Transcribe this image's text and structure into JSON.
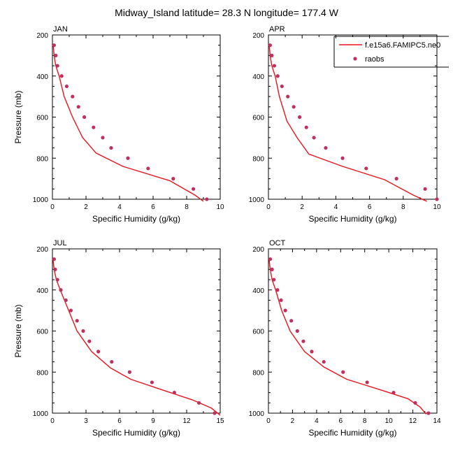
{
  "figure": {
    "title": "Midway_Island  latitude= 28.3 N longitude= 177.4 W"
  },
  "legend": {
    "model_label": "f.e15a6.FAMIPC5.ne0",
    "obs_label": "raobs",
    "model_color": "#e8141e",
    "obs_color": "#c0305f"
  },
  "chart_data": [
    {
      "type": "line",
      "panel": "JAN",
      "xlabel": "Specific Humidity (g/kg)",
      "ylabel": "Pressure (mb)",
      "xlim": [
        0,
        10
      ],
      "ylim": [
        1000,
        200
      ],
      "xticks": [
        0,
        2,
        4,
        6,
        8,
        10
      ],
      "yticks": [
        200,
        400,
        600,
        800,
        1000
      ],
      "series": [
        {
          "name": "f.e15a6.FAMIPC5.ne0",
          "style": "line",
          "x": [
            0.05,
            0.1,
            0.2,
            0.4,
            0.7,
            1.2,
            1.8,
            2.6,
            4.2,
            7.0,
            8.5,
            9.0
          ],
          "y": [
            250,
            300,
            350,
            400,
            500,
            600,
            700,
            775,
            840,
            910,
            980,
            1010
          ]
        },
        {
          "name": "raobs",
          "style": "markers",
          "x": [
            0.1,
            0.2,
            0.3,
            0.55,
            0.85,
            1.2,
            1.55,
            1.9,
            2.45,
            3.0,
            3.5,
            4.5,
            5.7,
            7.2,
            8.4,
            9.2
          ],
          "y": [
            250,
            300,
            350,
            400,
            450,
            500,
            550,
            600,
            650,
            700,
            750,
            800,
            850,
            900,
            950,
            1000
          ]
        }
      ]
    },
    {
      "type": "line",
      "panel": "APR",
      "xlabel": "Specific Humidity (g/kg)",
      "ylabel": "",
      "xlim": [
        0,
        10
      ],
      "ylim": [
        1000,
        200
      ],
      "xticks": [
        0,
        2,
        4,
        6,
        8,
        10
      ],
      "yticks": [
        200,
        400,
        600,
        800,
        1000
      ],
      "series": [
        {
          "name": "f.e15a6.FAMIPC5.ne0",
          "style": "line",
          "x": [
            0.05,
            0.1,
            0.2,
            0.4,
            0.65,
            1.1,
            1.7,
            2.4,
            4.4,
            6.9,
            8.6,
            9.4
          ],
          "y": [
            250,
            300,
            350,
            400,
            500,
            620,
            700,
            780,
            840,
            905,
            980,
            1010
          ]
        },
        {
          "name": "raobs",
          "style": "markers",
          "x": [
            0.1,
            0.2,
            0.35,
            0.55,
            0.8,
            1.15,
            1.5,
            1.85,
            2.25,
            2.7,
            3.4,
            4.4,
            5.8,
            7.6,
            9.3,
            10.0
          ],
          "y": [
            250,
            300,
            350,
            400,
            450,
            500,
            550,
            600,
            650,
            700,
            750,
            800,
            850,
            900,
            950,
            1000
          ]
        }
      ]
    },
    {
      "type": "line",
      "panel": "JUL",
      "xlabel": "Specific Humidity (g/kg)",
      "ylabel": "Pressure (mb)",
      "xlim": [
        0,
        15
      ],
      "ylim": [
        1000,
        200
      ],
      "xticks": [
        0,
        3,
        6,
        9,
        12,
        15
      ],
      "yticks": [
        200,
        400,
        600,
        800,
        1000
      ],
      "series": [
        {
          "name": "f.e15a6.FAMIPC5.ne0",
          "style": "line",
          "x": [
            0.05,
            0.15,
            0.35,
            0.7,
            1.3,
            2.2,
            3.5,
            5.2,
            7.0,
            10.0,
            12.5,
            14.2,
            15.0
          ],
          "y": [
            250,
            300,
            350,
            400,
            480,
            600,
            700,
            780,
            835,
            890,
            935,
            975,
            1010
          ]
        },
        {
          "name": "raobs",
          "style": "markers",
          "x": [
            0.15,
            0.25,
            0.45,
            0.75,
            1.2,
            1.65,
            2.2,
            2.75,
            3.3,
            4.1,
            5.3,
            6.9,
            8.9,
            10.9,
            13.1,
            14.5
          ],
          "y": [
            250,
            300,
            350,
            400,
            450,
            500,
            550,
            600,
            650,
            700,
            750,
            800,
            850,
            900,
            950,
            1000
          ]
        }
      ]
    },
    {
      "type": "line",
      "panel": "OCT",
      "xlabel": "Specific Humidity (g/kg)",
      "ylabel": "",
      "xlim": [
        0,
        14
      ],
      "ylim": [
        1000,
        200
      ],
      "xticks": [
        0,
        2,
        4,
        6,
        8,
        10,
        12,
        14
      ],
      "yticks": [
        200,
        400,
        600,
        800,
        1000
      ],
      "series": [
        {
          "name": "f.e15a6.FAMIPC5.ne0",
          "style": "line",
          "x": [
            0.05,
            0.15,
            0.3,
            0.6,
            1.1,
            1.8,
            3.0,
            4.6,
            6.5,
            9.5,
            11.6,
            12.6,
            13.1
          ],
          "y": [
            250,
            300,
            350,
            400,
            500,
            600,
            700,
            775,
            835,
            890,
            930,
            970,
            1005
          ]
        },
        {
          "name": "raobs",
          "style": "markers",
          "x": [
            0.15,
            0.3,
            0.45,
            0.75,
            1.05,
            1.4,
            1.9,
            2.4,
            2.9,
            3.6,
            4.6,
            6.2,
            8.2,
            10.4,
            12.2,
            13.3
          ],
          "y": [
            250,
            300,
            350,
            400,
            450,
            500,
            550,
            600,
            650,
            700,
            750,
            800,
            850,
            900,
            950,
            1000
          ]
        }
      ]
    }
  ]
}
